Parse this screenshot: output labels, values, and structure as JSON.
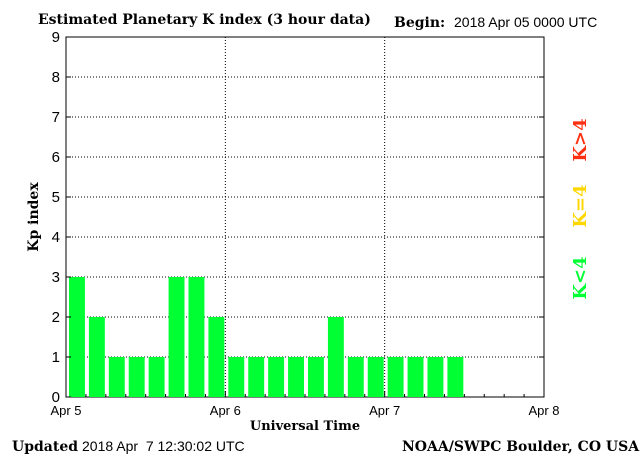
{
  "header": {
    "title": "Estimated Planetary K index (3 hour data)",
    "begin_label": "Begin:",
    "begin_value": "2018 Apr 05 0000 UTC"
  },
  "footer": {
    "updated_label": "Updated",
    "updated_value": "2018 Apr  7 12:30:02 UTC",
    "source": "NOAA/SWPC Boulder, CO USA"
  },
  "legend": {
    "items": [
      {
        "label": "K>4",
        "color": "#ff3010"
      },
      {
        "label": "K=4",
        "color": "#ffd700"
      },
      {
        "label": "K<4",
        "color": "#00ff33"
      }
    ]
  },
  "chart_data": {
    "type": "bar",
    "title": "Estimated Planetary K index (3 hour data)",
    "xlabel": "Universal Time",
    "ylabel": "Kp index",
    "ylim": [
      0,
      9
    ],
    "y_ticks": [
      "0",
      "1",
      "2",
      "3",
      "4",
      "5",
      "6",
      "7",
      "8",
      "9"
    ],
    "x_ticks": [
      "Apr 5",
      "Apr 6",
      "Apr 7",
      "Apr 8"
    ],
    "slots_per_day": 8,
    "grid": "dotted",
    "bar_color": "#00ff33",
    "values": [
      3,
      2,
      1,
      1,
      1,
      3,
      3,
      2,
      1,
      1,
      1,
      1,
      1,
      2,
      1,
      1,
      1,
      1,
      1,
      1
    ]
  }
}
